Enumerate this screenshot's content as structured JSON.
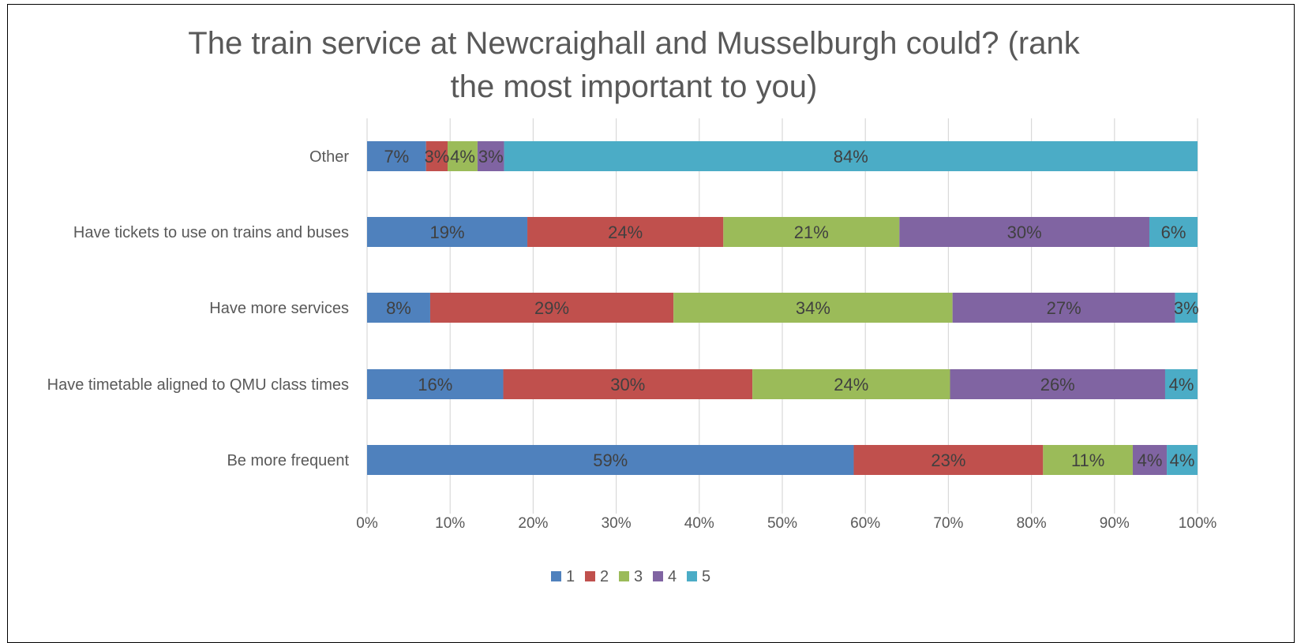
{
  "chart_data": {
    "type": "bar",
    "orientation": "horizontal",
    "stacked": "100%",
    "title": "The train service at Newcraighall and Musselburgh could? (rank the most important to you)",
    "title_lines": [
      "The train service at Newcraighall and Musselburgh could? (rank",
      "the most important to you)"
    ],
    "categories": [
      "Other",
      "Have tickets to use on trains and buses",
      "Have more services",
      "Have timetable aligned to QMU class times",
      "Be more frequent"
    ],
    "series": [
      {
        "name": "1",
        "color": "#4F81BD",
        "values": [
          7.1,
          19.3,
          7.6,
          16.4,
          58.6
        ],
        "labels": [
          "7%",
          "19%",
          "8%",
          "16%",
          "59%"
        ]
      },
      {
        "name": "2",
        "color": "#C0504D",
        "values": [
          2.6,
          23.6,
          29.3,
          30.0,
          22.8
        ],
        "labels": [
          "3%",
          "24%",
          "29%",
          "30%",
          "23%"
        ]
      },
      {
        "name": "3",
        "color": "#9BBB59",
        "values": [
          3.6,
          21.2,
          33.6,
          23.8,
          10.8
        ],
        "labels": [
          "4%",
          "21%",
          "34%",
          "24%",
          "11%"
        ]
      },
      {
        "name": "4",
        "color": "#8064A2",
        "values": [
          3.2,
          30.1,
          26.8,
          25.9,
          4.1
        ],
        "labels": [
          "3%",
          "30%",
          "27%",
          "26%",
          "4%"
        ]
      },
      {
        "name": "5",
        "color": "#4BACC6",
        "values": [
          83.5,
          5.8,
          2.7,
          3.9,
          3.7
        ],
        "labels": [
          "84%",
          "6%",
          "3%",
          "4%",
          "4%"
        ]
      }
    ],
    "xlim": [
      0,
      100
    ],
    "x_ticks": [
      "0%",
      "10%",
      "20%",
      "30%",
      "40%",
      "50%",
      "60%",
      "70%",
      "80%",
      "90%",
      "100%"
    ],
    "grid": true,
    "legend": "bottom"
  }
}
